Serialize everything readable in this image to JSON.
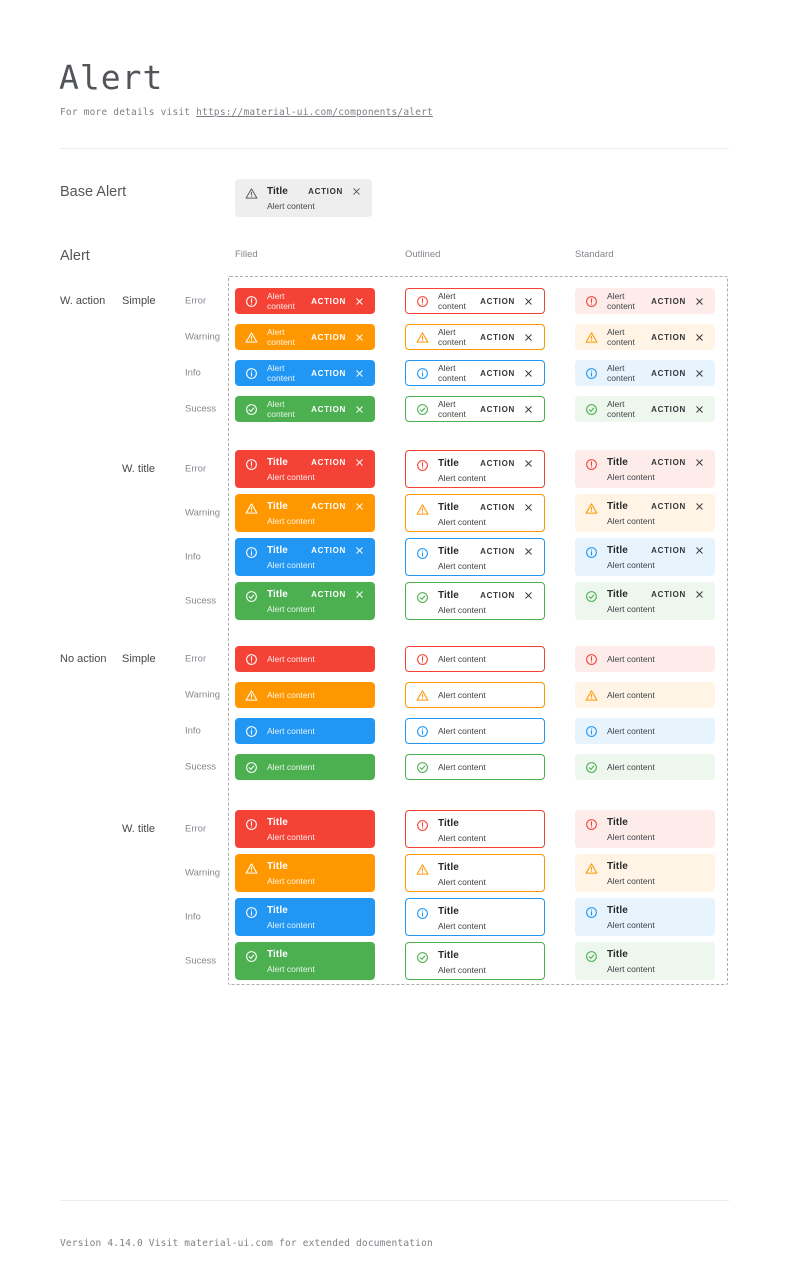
{
  "header": {
    "title": "Alert",
    "subtitle_prefix": "For more details visit",
    "subtitle_link": "https://material-ui.com/components/alert"
  },
  "base_alert_section": {
    "label": "Base Alert",
    "alert": {
      "title": "Title",
      "content": "Alert content",
      "action": "ACTION"
    }
  },
  "alert_section": {
    "heading": "Alert",
    "column_headers": [
      "Filled",
      "Outlined",
      "Standard"
    ],
    "variants": [
      "filled",
      "outlined",
      "standard"
    ],
    "severities": [
      "error",
      "warning",
      "info",
      "success"
    ],
    "severity_labels": [
      "Error",
      "Warning",
      "Info",
      "Sucess"
    ],
    "groups": [
      {
        "label": "W. action",
        "sub_label": "Simple",
        "with_title": false,
        "with_action": true
      },
      {
        "label": "",
        "sub_label": "W. title",
        "with_title": true,
        "with_action": true
      },
      {
        "label": "No action",
        "sub_label": "Simple",
        "with_title": false,
        "with_action": false
      },
      {
        "label": "",
        "sub_label": "W. title",
        "with_title": true,
        "with_action": false
      }
    ],
    "alert_text": {
      "title": "Title",
      "content": "Alert content",
      "action": "ACTION"
    }
  },
  "footer": {
    "text": "Version 4.14.0  Visit material-ui.com for extended documentation"
  },
  "colors": {
    "error": {
      "main": "#f44336",
      "standard_bg": "#fdecea"
    },
    "warning": {
      "main": "#ff9800",
      "standard_bg": "#fff4e5"
    },
    "info": {
      "main": "#2196f3",
      "standard_bg": "#e8f4fd"
    },
    "success": {
      "main": "#4caf50",
      "standard_bg": "#edf7ed"
    },
    "base_alert_bg": "#eeeeee",
    "filled_text": "#ffffff",
    "dark_title": "#27292c",
    "dark_text": "#3e4247",
    "dark_action": "#34373b",
    "label_gray": "#85898f",
    "dashed_border": "#a8adb6"
  }
}
